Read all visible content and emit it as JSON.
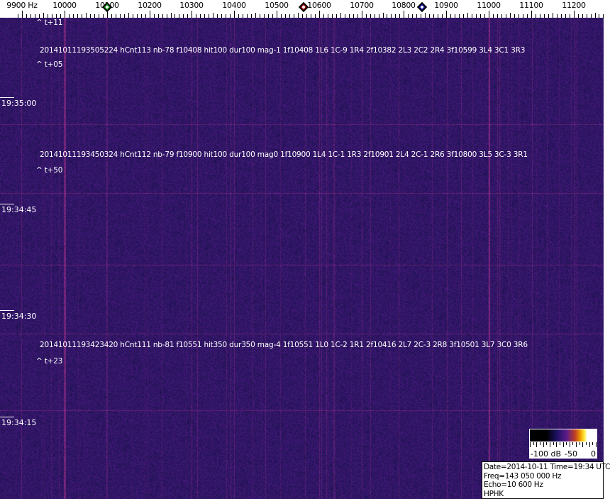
{
  "axis": {
    "unit_label": "9900 Hz",
    "labels": [
      "10000",
      "10100",
      "10200",
      "10300",
      "10400",
      "10500",
      "10600",
      "10700",
      "10800",
      "10900",
      "11000",
      "11100",
      "11200"
    ],
    "range_hz": [
      9880,
      11275
    ]
  },
  "markers": [
    {
      "name": "green-marker",
      "freq_hz": 10100,
      "color": "#1fa81f"
    },
    {
      "name": "red-marker",
      "freq_hz": 10563,
      "color": "#c01010"
    },
    {
      "name": "blue-marker",
      "freq_hz": 10843,
      "color": "#1010b0"
    }
  ],
  "colors": {
    "background": "#24186a",
    "signal": "#9a2a6a",
    "text": "#ffffff"
  },
  "timestamps": [
    "19:35:00",
    "19:34:45",
    "19:34:30",
    "19:34:15"
  ],
  "annotations": [
    {
      "offset": "^ t+11"
    },
    {
      "detection": "20141011193505224 hCnt113 nb-78 f10408 hit100 dur100 mag-1 1f10408 1L6 1C-9 1R4 2f10382 2L3 2C2 2R4 3f10599 3L4 3C1 3R3"
    },
    {
      "offset": "^ t+05"
    },
    {
      "detection": "20141011193450324 hCnt112 nb-79 f10900 hit100 dur100 mag0 1f10900 1L4 1C-1 1R3 2f10901 2L4 2C-1 2R6 3f10800 3L5 3C-3 3R1"
    },
    {
      "offset": "^ t+50"
    },
    {
      "detection": "20141011193423420 hCnt111 nb-81 f10551 hit350 dur350 mag-4 1f10551 1L0 1C-2 1R1 2f10416 2L7 2C-3 2R8 3f10501 3L7 3C0 3R6"
    },
    {
      "offset": "^ t+23"
    }
  ],
  "colorbar": {
    "labels": [
      "-100 dB",
      "-50",
      "0"
    ]
  },
  "info": {
    "date_time": "Date=2014-10-11 Time=19:34 UTC",
    "freq": "Freq=143 050 000 Hz",
    "echo": "Echo=10 600 Hz",
    "station": "HPHK"
  }
}
